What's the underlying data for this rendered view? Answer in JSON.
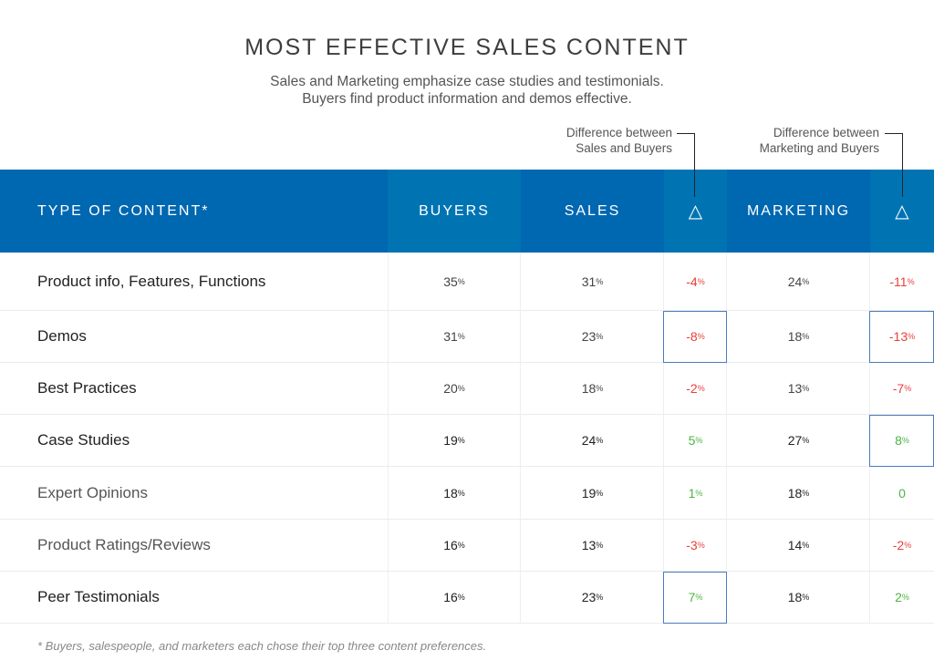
{
  "header": {
    "title": "MOST EFFECTIVE SALES CONTENT",
    "subtitle_line1": "Sales and Marketing emphasize case studies and testimonials.",
    "subtitle_line2": "Buyers find product information and demos effective."
  },
  "annotations": {
    "sales_diff_line1": "Difference between",
    "sales_diff_line2": "Sales and Buyers",
    "marketing_diff_line1": "Difference between",
    "marketing_diff_line2": "Marketing and Buyers"
  },
  "columns": {
    "type": "TYPE OF CONTENT*",
    "buyers": "BUYERS",
    "sales": "SALES",
    "sales_delta": "△",
    "marketing": "MARKETING",
    "marketing_delta": "△"
  },
  "colors": {
    "header_dark": "#0067b1",
    "header_light": "#0074b3",
    "negative": "#e8413c",
    "positive": "#4bb543",
    "highlight_box": "#4a7bbf"
  },
  "chart_data": {
    "type": "table",
    "title": "MOST EFFECTIVE SALES CONTENT",
    "columns": [
      "TYPE OF CONTENT*",
      "BUYERS",
      "SALES",
      "△ Sales vs Buyers",
      "MARKETING",
      "△ Marketing vs Buyers"
    ],
    "rows": [
      {
        "label": "Product info, Features, Functions",
        "buyers": "35",
        "sales": "31",
        "sales_delta": "-4",
        "marketing": "24",
        "marketing_delta": "-11",
        "highlight_sales_delta": false,
        "highlight_marketing_delta": false
      },
      {
        "label": "Demos",
        "buyers": "31",
        "sales": "23",
        "sales_delta": "-8",
        "marketing": "18",
        "marketing_delta": "-13",
        "highlight_sales_delta": true,
        "highlight_marketing_delta": true
      },
      {
        "label": "Best Practices",
        "buyers": "20",
        "sales": "18",
        "sales_delta": "-2",
        "marketing": "13",
        "marketing_delta": "-7",
        "highlight_sales_delta": false,
        "highlight_marketing_delta": false
      },
      {
        "label": "Case Studies",
        "buyers": "19",
        "sales": "24",
        "sales_delta": "5",
        "marketing": "27",
        "marketing_delta": "8",
        "highlight_sales_delta": false,
        "highlight_marketing_delta": true
      },
      {
        "label": "Expert Opinions",
        "buyers": "18",
        "sales": "19",
        "sales_delta": "1",
        "marketing": "18",
        "marketing_delta": "0",
        "highlight_sales_delta": false,
        "highlight_marketing_delta": false
      },
      {
        "label": "Product Ratings/Reviews",
        "buyers": "16",
        "sales": "13",
        "sales_delta": "-3",
        "marketing": "14",
        "marketing_delta": "-2",
        "highlight_sales_delta": false,
        "highlight_marketing_delta": false
      },
      {
        "label": "Peer Testimonials",
        "buyers": "16",
        "sales": "23",
        "sales_delta": "7",
        "marketing": "18",
        "marketing_delta": "2",
        "highlight_sales_delta": true,
        "highlight_marketing_delta": false
      }
    ],
    "unit": "%"
  },
  "footnote": "* Buyers, salespeople, and marketers each chose their top three content preferences."
}
